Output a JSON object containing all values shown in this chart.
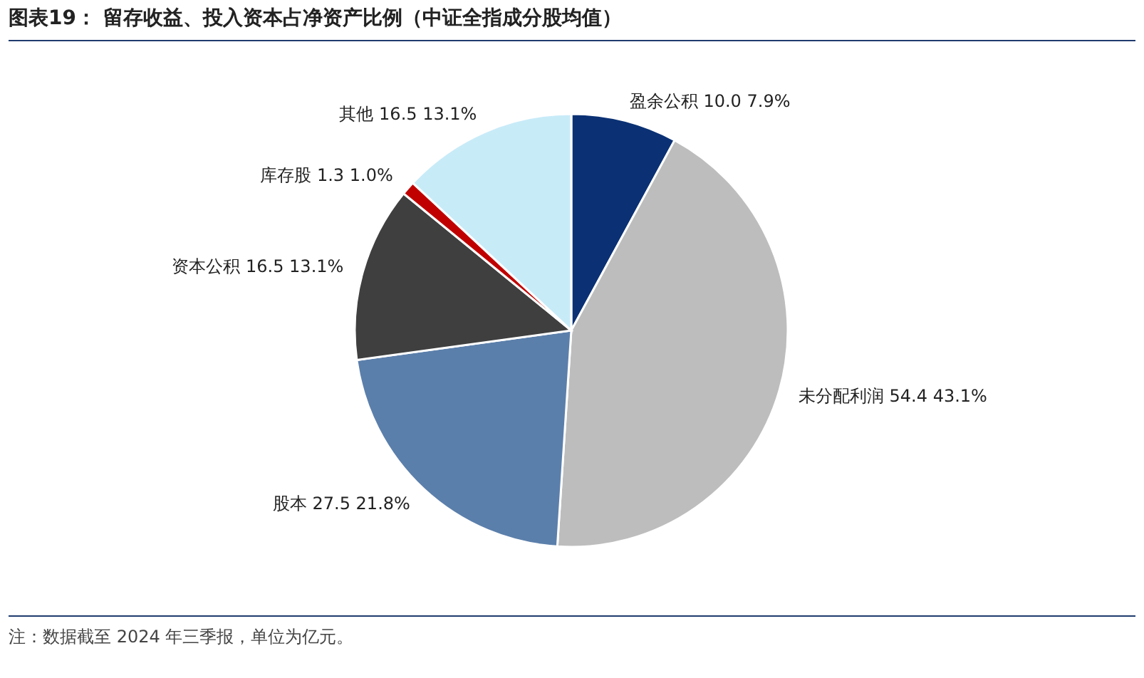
{
  "chart_data": {
    "type": "pie",
    "title": "图表19：  留存收益、投入资本占净资产比例（中证全指成分股均值）",
    "categories": [
      "盈余公积",
      "未分配利润",
      "股本",
      "资本公积",
      "库存股",
      "其他"
    ],
    "values": [
      10.0,
      54.4,
      27.5,
      16.5,
      1.3,
      16.5
    ],
    "value_labels": [
      "10.0  7.9%",
      "54.4  43.1%",
      "27.5  21.8%",
      "16.5  13.1%",
      "1.3  1.0%",
      "16.5  13.1%"
    ],
    "colors": [
      "#0b3174",
      "#bdbdbd",
      "#5b7fab",
      "#3f3f3f",
      "#c00000",
      "#c8ebf8"
    ],
    "annotations": [
      "注：数据截至 2024 年三季报，单位为亿元。"
    ]
  }
}
